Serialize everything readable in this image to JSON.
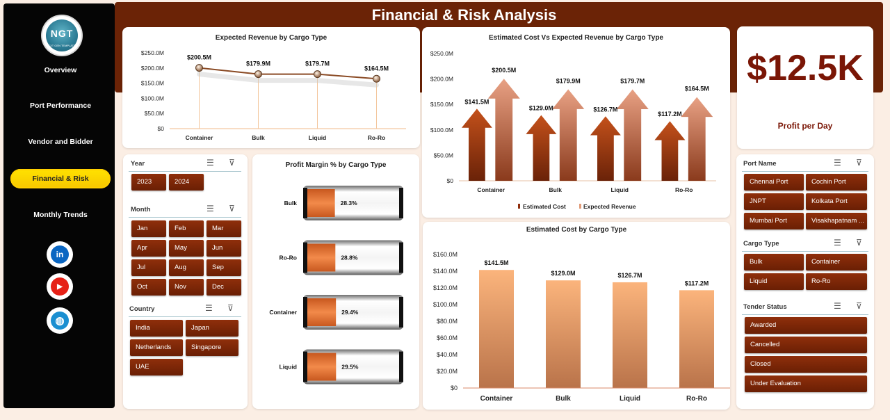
{
  "title": "Financial & Risk Analysis",
  "logo": {
    "text": "NGT",
    "tagline": "NEXT GEN TEMPLATES"
  },
  "nav": [
    {
      "label": "Overview",
      "active": false
    },
    {
      "label": "Port Performance",
      "active": false
    },
    {
      "label": "Vendor and Bidder",
      "active": false
    },
    {
      "label": "Financial & Risk",
      "active": true
    },
    {
      "label": "Monthly Trends",
      "active": false
    }
  ],
  "social": [
    {
      "icon": "linkedin-icon",
      "glyph": "in",
      "color": "#0a66c2"
    },
    {
      "icon": "youtube-icon",
      "glyph": "▶",
      "color": "#e62117"
    },
    {
      "icon": "globe-icon",
      "glyph": "◍",
      "color": "#1a8fd1"
    }
  ],
  "colors": {
    "brand": "#6b2306",
    "chip": "#7a2508",
    "accent": "#f7c700",
    "bar_light": "#fbb47c",
    "bar_dark": "#8a3a12"
  },
  "kpi": {
    "value": "$12.5K",
    "label": "Profit per Day"
  },
  "slicers": {
    "year": {
      "title": "Year",
      "items": [
        "2023",
        "2024"
      ]
    },
    "month": {
      "title": "Month",
      "items": [
        "Jan",
        "Feb",
        "Mar",
        "Apr",
        "May",
        "Jun",
        "Jul",
        "Aug",
        "Sep",
        "Oct",
        "Nov",
        "Dec"
      ]
    },
    "country": {
      "title": "Country",
      "items": [
        "India",
        "Japan",
        "Netherlands",
        "Singapore",
        "UAE"
      ]
    },
    "port": {
      "title": "Port Name",
      "items": [
        "Chennai Port",
        "Cochin Port",
        "JNPT",
        "Kolkata Port",
        "Mumbai Port",
        "Visakhapatnam ..."
      ]
    },
    "cargo": {
      "title": "Cargo Type",
      "items": [
        "Bulk",
        "Container",
        "Liquid",
        "Ro-Ro"
      ]
    },
    "tender": {
      "title": "Tender Status",
      "items": [
        "Awarded",
        "Cancelled",
        "Closed",
        "Under Evaluation"
      ]
    }
  },
  "chart_data": [
    {
      "type": "line",
      "title": "Expected Revenue by Cargo Type",
      "categories": [
        "Container",
        "Bulk",
        "Liquid",
        "Ro-Ro"
      ],
      "values": [
        200.5,
        179.9,
        179.7,
        164.5
      ],
      "labels": [
        "$200.5M",
        "$179.9M",
        "$179.7M",
        "$164.5M"
      ],
      "yticks": [
        "$0",
        "$50.0M",
        "$100.0M",
        "$150.0M",
        "$200.0M",
        "$250.0M"
      ],
      "ylim": [
        0,
        250
      ]
    },
    {
      "type": "bar",
      "title": "Estimated Cost Vs Expected Revenue by Cargo Type",
      "categories": [
        "Container",
        "Bulk",
        "Liquid",
        "Ro-Ro"
      ],
      "series": [
        {
          "name": "Estimated Cost",
          "values": [
            141.5,
            129.0,
            126.7,
            117.2
          ],
          "labels": [
            "$141.5M",
            "$129.0M",
            "$126.7M",
            "$117.2M"
          ]
        },
        {
          "name": "Expected Revenue",
          "values": [
            200.5,
            179.9,
            179.7,
            164.5
          ],
          "labels": [
            "$200.5M",
            "$179.9M",
            "$179.7M",
            "$164.5M"
          ]
        }
      ],
      "yticks": [
        "$0",
        "$50.0M",
        "$100.0M",
        "$150.0M",
        "$200.0M",
        "$250.0M"
      ],
      "ylim": [
        0,
        250
      ],
      "legend": "bottom"
    },
    {
      "type": "bar",
      "title": "Profit Margin % by Cargo Type",
      "categories": [
        "Bulk",
        "Ro-Ro",
        "Container",
        "Liquid"
      ],
      "values": [
        28.3,
        28.8,
        29.4,
        29.5
      ],
      "labels": [
        "28.3%",
        "28.8%",
        "29.4%",
        "29.5%"
      ],
      "orientation": "horizontal"
    },
    {
      "type": "bar",
      "title": "Estimated Cost by Cargo Type",
      "categories": [
        "Container",
        "Bulk",
        "Liquid",
        "Ro-Ro"
      ],
      "values": [
        141.5,
        129.0,
        126.7,
        117.2
      ],
      "labels": [
        "$141.5M",
        "$129.0M",
        "$126.7M",
        "$117.2M"
      ],
      "yticks": [
        "$0",
        "$20.0M",
        "$40.0M",
        "$60.0M",
        "$80.0M",
        "$100.0M",
        "$120.0M",
        "$140.0M",
        "$160.0M"
      ],
      "ylim": [
        0,
        160
      ]
    }
  ]
}
